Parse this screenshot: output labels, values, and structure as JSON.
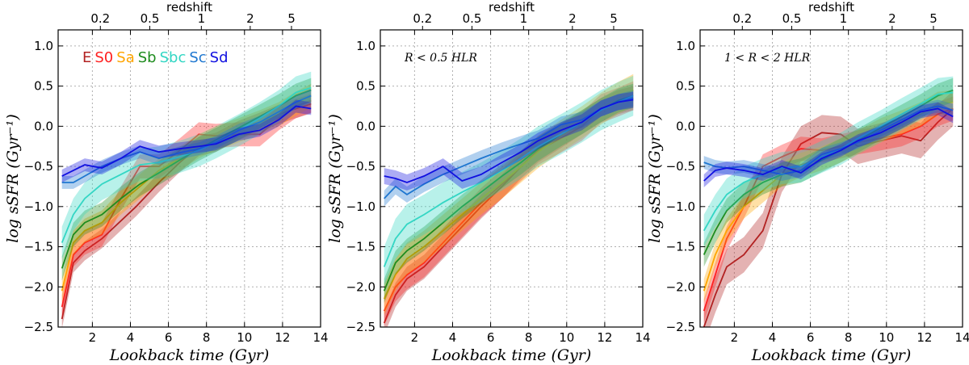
{
  "chart_data": [
    {
      "type": "line",
      "panel": 1,
      "annotation": "",
      "xlabel": "Lookback time (Gyr)",
      "ylabel": "log sSFR (Gyr⁻¹)",
      "top_axis_label": "redshift",
      "top_ticks": [
        {
          "label": "0.2",
          "t": 2.42
        },
        {
          "label": "0.5",
          "t": 5.02
        },
        {
          "label": "1",
          "t": 7.73
        },
        {
          "label": "2",
          "t": 10.3
        },
        {
          "label": "5",
          "t": 12.47
        }
      ],
      "xlim": [
        0.2,
        14
      ],
      "ylim": [
        -2.5,
        1.2
      ],
      "xticks": [
        2,
        4,
        6,
        8,
        10,
        12,
        14
      ],
      "yticks": [
        -2.5,
        -2.0,
        -1.5,
        -1.0,
        -0.5,
        0.0,
        0.5,
        1.0
      ],
      "grid": true,
      "legend": [
        "E",
        "S0",
        "Sa",
        "Sb",
        "Sbc",
        "Sc",
        "Sd"
      ],
      "series": [
        {
          "name": "E",
          "color": "#b22222",
          "x": [
            0.4,
            1,
            1.6,
            2.5,
            4.3,
            5.5,
            6.6,
            7.6,
            8.5,
            9.7,
            10.8,
            11.8,
            12.7,
            13.5
          ],
          "values": [
            -2.4,
            -1.7,
            -1.55,
            -1.4,
            -1.0,
            -0.7,
            -0.45,
            -0.25,
            -0.2,
            -0.05,
            0.05,
            0.15,
            0.22,
            0.28
          ],
          "band": 0.12
        },
        {
          "name": "S0",
          "color": "#ff2020",
          "x": [
            0.4,
            1,
            1.6,
            2.5,
            3.5,
            4.5,
            5.5,
            6.6,
            7.6,
            8.5,
            9.7,
            10.8,
            11.8,
            12.7,
            13.5
          ],
          "values": [
            -2.25,
            -1.6,
            -1.45,
            -1.35,
            -0.9,
            -0.5,
            -0.5,
            -0.3,
            -0.1,
            -0.12,
            -0.1,
            -0.1,
            0.1,
            0.25,
            0.32
          ],
          "band": 0.15
        },
        {
          "name": "Sa",
          "color": "#ffa500",
          "x": [
            0.4,
            1,
            1.6,
            2.5,
            3.5,
            4.5,
            5.5,
            6.6,
            7.6,
            8.5,
            9.7,
            10.8,
            11.8,
            12.7,
            13.5
          ],
          "values": [
            -2.05,
            -1.45,
            -1.3,
            -1.2,
            -0.95,
            -0.75,
            -0.55,
            -0.4,
            -0.25,
            -0.15,
            -0.05,
            0.05,
            0.15,
            0.28,
            0.38
          ],
          "band": 0.15
        },
        {
          "name": "Sb",
          "color": "#1e8c1e",
          "x": [
            0.4,
            1,
            1.6,
            2.5,
            3.5,
            4.5,
            5.5,
            6.6,
            7.6,
            8.5,
            9.7,
            10.8,
            11.8,
            12.7,
            13.5
          ],
          "values": [
            -1.77,
            -1.35,
            -1.2,
            -1.1,
            -0.9,
            -0.72,
            -0.58,
            -0.42,
            -0.28,
            -0.17,
            -0.02,
            0.12,
            0.25,
            0.38,
            0.45
          ],
          "band": 0.15
        },
        {
          "name": "Sbc",
          "color": "#33d6c4",
          "x": [
            0.4,
            1,
            1.6,
            2.5,
            3.5,
            4.5,
            5.5,
            6.6,
            7.6,
            8.5,
            9.7,
            10.8,
            11.8,
            12.7,
            13.5
          ],
          "values": [
            -1.45,
            -1.1,
            -0.9,
            -0.72,
            -0.6,
            -0.48,
            -0.45,
            -0.38,
            -0.3,
            -0.2,
            -0.05,
            0.1,
            0.25,
            0.42,
            0.48
          ],
          "band": 0.2
        },
        {
          "name": "Sc",
          "color": "#1f77d0",
          "x": [
            0.4,
            1,
            1.6,
            2.5,
            3.5,
            4.5,
            5.5,
            6.6,
            7.6,
            8.5,
            9.7,
            10.8,
            11.8,
            12.7,
            13.5
          ],
          "values": [
            -0.7,
            -0.7,
            -0.62,
            -0.5,
            -0.4,
            -0.32,
            -0.4,
            -0.33,
            -0.28,
            -0.2,
            -0.05,
            0.05,
            0.18,
            0.3,
            0.38
          ],
          "band": 0.08
        },
        {
          "name": "Sd",
          "color": "#1010e0",
          "x": [
            0.4,
            1,
            1.6,
            2.5,
            3.5,
            4.5,
            5.5,
            6.6,
            7.6,
            8.5,
            9.7,
            10.8,
            11.8,
            12.7,
            13.5
          ],
          "values": [
            -0.62,
            -0.55,
            -0.48,
            -0.52,
            -0.4,
            -0.25,
            -0.32,
            -0.28,
            -0.25,
            -0.22,
            -0.1,
            -0.05,
            0.08,
            0.25,
            0.22
          ],
          "band": 0.08
        }
      ]
    },
    {
      "type": "line",
      "panel": 2,
      "annotation": "R < 0.5 HLR",
      "xlabel": "Lookback time (Gyr)",
      "ylabel": "log sSFR (Gyr⁻¹)",
      "top_axis_label": "redshift",
      "top_ticks": [
        {
          "label": "0.2",
          "t": 2.42
        },
        {
          "label": "0.5",
          "t": 5.02
        },
        {
          "label": "1",
          "t": 7.73
        },
        {
          "label": "2",
          "t": 10.3
        },
        {
          "label": "5",
          "t": 12.47
        }
      ],
      "xlim": [
        0.2,
        14
      ],
      "ylim": [
        -2.5,
        1.2
      ],
      "xticks": [
        2,
        4,
        6,
        8,
        10,
        12,
        14
      ],
      "yticks": [
        -2.5,
        -2.0,
        -1.5,
        -1.0,
        -0.5,
        0.0,
        0.5,
        1.0
      ],
      "grid": true,
      "legend": [],
      "series": [
        {
          "name": "E",
          "color": "#b22222",
          "x": [
            0.4,
            1,
            1.6,
            2.5,
            3.5,
            4.5,
            5.5,
            6.6,
            7.6,
            8.5,
            9.7,
            10.8,
            11.8,
            12.7,
            13.5
          ],
          "values": [
            -2.45,
            -2.1,
            -1.9,
            -1.75,
            -1.5,
            -1.25,
            -1.0,
            -0.75,
            -0.5,
            -0.3,
            -0.12,
            0.05,
            0.2,
            0.3,
            0.35
          ],
          "band": 0.15
        },
        {
          "name": "S0",
          "color": "#ff2020",
          "x": [
            0.4,
            1,
            1.6,
            2.5,
            3.5,
            4.5,
            5.5,
            6.6,
            7.6,
            8.5,
            9.7,
            10.8,
            11.8,
            12.7,
            13.5
          ],
          "values": [
            -2.3,
            -2.0,
            -1.85,
            -1.7,
            -1.45,
            -1.2,
            -0.95,
            -0.72,
            -0.5,
            -0.3,
            -0.15,
            0.0,
            0.22,
            0.3,
            0.38
          ],
          "band": 0.18
        },
        {
          "name": "Sa",
          "color": "#ffa500",
          "x": [
            0.4,
            1,
            1.6,
            2.5,
            3.5,
            4.5,
            5.5,
            6.6,
            7.6,
            8.5,
            9.7,
            10.8,
            11.8,
            12.7,
            13.5
          ],
          "values": [
            -2.15,
            -1.85,
            -1.65,
            -1.5,
            -1.3,
            -1.1,
            -0.9,
            -0.7,
            -0.5,
            -0.32,
            -0.12,
            0.05,
            0.22,
            0.35,
            0.45
          ],
          "band": 0.2
        },
        {
          "name": "Sb",
          "color": "#1e8c1e",
          "x": [
            0.4,
            1,
            1.6,
            2.5,
            3.5,
            4.5,
            5.5,
            6.6,
            7.6,
            8.5,
            9.7,
            10.8,
            11.8,
            12.7,
            13.5
          ],
          "values": [
            -2.05,
            -1.7,
            -1.55,
            -1.4,
            -1.2,
            -1.0,
            -0.82,
            -0.62,
            -0.45,
            -0.28,
            -0.1,
            0.05,
            0.2,
            0.32,
            0.38
          ],
          "band": 0.15
        },
        {
          "name": "Sbc",
          "color": "#33d6c4",
          "x": [
            0.4,
            1,
            1.6,
            2.5,
            3.5,
            4.5,
            5.5,
            6.6,
            7.6,
            8.5,
            9.7,
            10.8,
            11.8,
            12.7,
            13.5
          ],
          "values": [
            -1.75,
            -1.4,
            -1.22,
            -1.1,
            -0.95,
            -0.82,
            -0.7,
            -0.55,
            -0.4,
            -0.25,
            -0.1,
            0.05,
            0.2,
            0.3,
            0.38
          ],
          "band": 0.25
        },
        {
          "name": "Sc",
          "color": "#1f77d0",
          "x": [
            0.4,
            1,
            1.6,
            2.5,
            3.5,
            4.5,
            5.5,
            6.6,
            7.6,
            8.5,
            9.7,
            10.8,
            11.8,
            12.7,
            13.5
          ],
          "values": [
            -0.9,
            -0.75,
            -0.85,
            -0.72,
            -0.6,
            -0.5,
            -0.4,
            -0.3,
            -0.22,
            -0.15,
            0.02,
            0.08,
            0.22,
            0.3,
            0.35
          ],
          "band": 0.1
        },
        {
          "name": "Sd",
          "color": "#1010e0",
          "x": [
            0.4,
            1,
            1.6,
            2.5,
            3.5,
            4.5,
            5.5,
            6.6,
            7.6,
            8.5,
            9.7,
            10.8,
            11.8,
            12.7,
            13.5
          ],
          "values": [
            -0.62,
            -0.65,
            -0.7,
            -0.62,
            -0.5,
            -0.68,
            -0.6,
            -0.45,
            -0.32,
            -0.18,
            -0.05,
            0.05,
            0.22,
            0.3,
            0.33
          ],
          "band": 0.1
        }
      ]
    },
    {
      "type": "line",
      "panel": 3,
      "annotation": "1 < R < 2 HLR",
      "xlabel": "Lookback time (Gyr)",
      "ylabel": "log sSFR (Gyr⁻¹)",
      "top_axis_label": "redshift",
      "top_ticks": [
        {
          "label": "0.2",
          "t": 2.42
        },
        {
          "label": "0.5",
          "t": 5.02
        },
        {
          "label": "1",
          "t": 7.73
        },
        {
          "label": "2",
          "t": 10.3
        },
        {
          "label": "5",
          "t": 12.47
        }
      ],
      "xlim": [
        0.2,
        14
      ],
      "ylim": [
        -2.5,
        1.2
      ],
      "xticks": [
        2,
        4,
        6,
        8,
        10,
        12,
        14
      ],
      "yticks": [
        -2.5,
        -2.0,
        -1.5,
        -1.0,
        -0.5,
        0.0,
        0.5,
        1.0
      ],
      "grid": true,
      "legend": [],
      "series": [
        {
          "name": "E",
          "color": "#b22222",
          "x": [
            0.4,
            1,
            1.6,
            2.5,
            3.5,
            4.5,
            5.5,
            6.6,
            7.6,
            8.5,
            9.7,
            10.8,
            11.8,
            12.7,
            13.5
          ],
          "values": [
            -2.5,
            -2.1,
            -1.75,
            -1.6,
            -1.3,
            -0.6,
            -0.22,
            -0.08,
            -0.1,
            -0.25,
            -0.18,
            -0.12,
            -0.18,
            0.05,
            0.22
          ],
          "band": 0.22
        },
        {
          "name": "S0",
          "color": "#ff2020",
          "x": [
            0.4,
            1,
            1.6,
            2.5,
            3.5,
            4.5,
            5.5,
            6.6,
            7.6,
            8.5,
            9.7,
            10.8,
            11.8,
            12.7,
            13.5
          ],
          "values": [
            -2.3,
            -1.85,
            -1.4,
            -1.0,
            -0.5,
            -0.38,
            -0.28,
            -0.3,
            -0.25,
            -0.2,
            -0.15,
            -0.1,
            0.0,
            0.15,
            0.22
          ],
          "band": 0.15
        },
        {
          "name": "Sa",
          "color": "#ffa500",
          "x": [
            0.4,
            1,
            1.6,
            2.5,
            3.5,
            4.5,
            5.5,
            6.6,
            7.6,
            8.5,
            9.7,
            10.8,
            11.8,
            12.7,
            13.5
          ],
          "values": [
            -2.05,
            -1.6,
            -1.3,
            -1.0,
            -0.8,
            -0.6,
            -0.48,
            -0.4,
            -0.3,
            -0.2,
            -0.05,
            0.05,
            0.15,
            0.28,
            0.3
          ],
          "band": 0.15
        },
        {
          "name": "Sb",
          "color": "#1e8c1e",
          "x": [
            0.4,
            1,
            1.6,
            2.5,
            3.5,
            4.5,
            5.5,
            6.6,
            7.6,
            8.5,
            9.7,
            10.8,
            11.8,
            12.7,
            13.5
          ],
          "values": [
            -1.6,
            -1.3,
            -1.05,
            -0.85,
            -0.7,
            -0.6,
            -0.55,
            -0.42,
            -0.3,
            -0.18,
            -0.02,
            0.12,
            0.25,
            0.38,
            0.45
          ],
          "band": 0.15
        },
        {
          "name": "Sbc",
          "color": "#33d6c4",
          "x": [
            0.4,
            1,
            1.6,
            2.5,
            3.5,
            4.5,
            5.5,
            6.6,
            7.6,
            8.5,
            9.7,
            10.8,
            11.8,
            12.7,
            13.5
          ],
          "values": [
            -1.3,
            -1.05,
            -0.85,
            -0.7,
            -0.6,
            -0.52,
            -0.5,
            -0.38,
            -0.28,
            -0.15,
            0.0,
            0.15,
            0.28,
            0.4,
            0.42
          ],
          "band": 0.2
        },
        {
          "name": "Sc",
          "color": "#1f77d0",
          "x": [
            0.4,
            1,
            1.6,
            2.5,
            3.5,
            4.5,
            5.5,
            6.6,
            7.6,
            8.5,
            9.7,
            10.8,
            11.8,
            12.7,
            13.5
          ],
          "values": [
            -0.45,
            -0.5,
            -0.52,
            -0.5,
            -0.55,
            -0.6,
            -0.55,
            -0.35,
            -0.28,
            -0.2,
            -0.05,
            0.08,
            0.2,
            0.25,
            0.2
          ],
          "band": 0.08
        },
        {
          "name": "Sd",
          "color": "#1010e0",
          "x": [
            0.4,
            1,
            1.6,
            2.5,
            3.5,
            4.5,
            5.5,
            6.6,
            7.6,
            8.5,
            9.7,
            10.8,
            11.8,
            12.7,
            13.5
          ],
          "values": [
            -0.68,
            -0.55,
            -0.52,
            -0.55,
            -0.6,
            -0.5,
            -0.58,
            -0.4,
            -0.3,
            -0.18,
            -0.08,
            0.05,
            0.18,
            0.22,
            0.12
          ],
          "band": 0.08
        }
      ]
    }
  ]
}
